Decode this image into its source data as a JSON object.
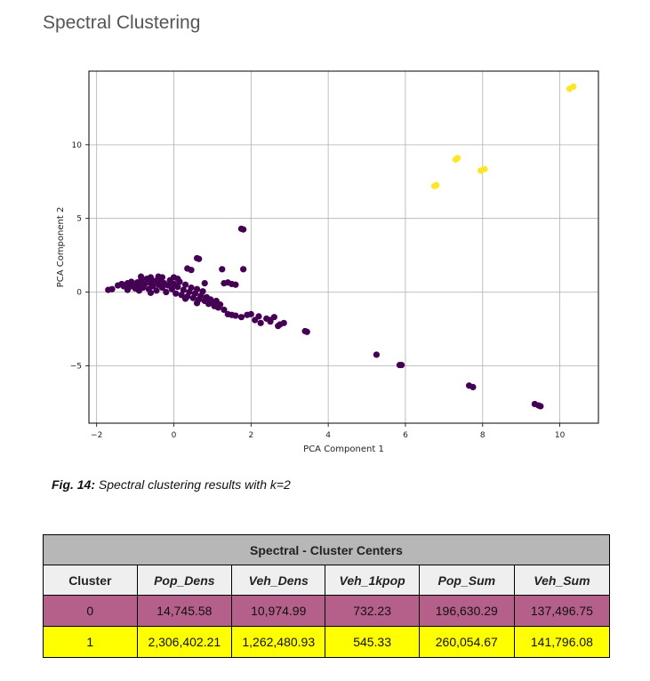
{
  "heading": "Spectral Clustering",
  "caption": {
    "label": "Fig. 14:",
    "text": " Spectral clustering results with k=2"
  },
  "chart_data": {
    "type": "scatter",
    "xlabel": "PCA Component 1",
    "ylabel": "PCA Component 2",
    "xlim": [
      -2.2,
      11.0
    ],
    "ylim": [
      -8.9,
      15.0
    ],
    "xticks": [
      -2,
      0,
      2,
      4,
      6,
      8,
      10
    ],
    "yticks": [
      -5,
      0,
      5,
      10
    ],
    "xtick_labels": [
      "−2",
      "0",
      "2",
      "4",
      "6",
      "8",
      "10"
    ],
    "ytick_labels": [
      "−5",
      "0",
      "5",
      "10"
    ],
    "grid": true,
    "colors": {
      "0": "#440154",
      "1": "#fde725"
    },
    "series": [
      {
        "cluster": 0,
        "points": [
          [
            -1.7,
            0.15
          ],
          [
            -1.6,
            0.2
          ],
          [
            -1.45,
            0.45
          ],
          [
            -1.35,
            0.55
          ],
          [
            -1.3,
            0.4
          ],
          [
            -1.2,
            0.6
          ],
          [
            -1.15,
            0.35
          ],
          [
            -1.1,
            0.7
          ],
          [
            -1.05,
            0.5
          ],
          [
            -1.0,
            0.25
          ],
          [
            -0.95,
            0.65
          ],
          [
            -0.9,
            0.45
          ],
          [
            -0.85,
            0.8
          ],
          [
            -0.8,
            0.3
          ],
          [
            -0.75,
            0.55
          ],
          [
            -0.7,
            0.9
          ],
          [
            -0.65,
            0.2
          ],
          [
            -0.6,
            0.6
          ],
          [
            -0.55,
            0.4
          ],
          [
            -0.5,
            0.75
          ],
          [
            -0.45,
            0.1
          ],
          [
            -0.4,
            0.5
          ],
          [
            -0.35,
            0.85
          ],
          [
            -0.3,
            0.3
          ],
          [
            -0.25,
            0.6
          ],
          [
            -0.2,
            0.0
          ],
          [
            -0.15,
            0.45
          ],
          [
            -0.1,
            0.8
          ],
          [
            -0.05,
            0.2
          ],
          [
            0.0,
            0.55
          ],
          [
            0.05,
            -0.1
          ],
          [
            0.1,
            0.35
          ],
          [
            0.15,
            0.7
          ],
          [
            0.2,
            -0.2
          ],
          [
            0.25,
            0.15
          ],
          [
            0.3,
            0.5
          ],
          [
            0.35,
            -0.3
          ],
          [
            0.4,
            0.0
          ],
          [
            0.45,
            0.3
          ],
          [
            0.5,
            -0.4
          ],
          [
            0.55,
            -0.1
          ],
          [
            0.6,
            0.2
          ],
          [
            0.65,
            -0.5
          ],
          [
            0.7,
            -0.25
          ],
          [
            0.75,
            0.05
          ],
          [
            0.8,
            -0.6
          ],
          [
            0.85,
            -0.35
          ],
          [
            0.9,
            -0.8
          ],
          [
            0.95,
            -0.5
          ],
          [
            1.0,
            -0.7
          ],
          [
            1.05,
            -0.95
          ],
          [
            1.1,
            -0.6
          ],
          [
            1.15,
            -1.05
          ],
          [
            1.2,
            -0.85
          ],
          [
            1.3,
            -1.2
          ],
          [
            -1.2,
            0.15
          ],
          [
            -0.9,
            0.1
          ],
          [
            -0.6,
            -0.05
          ],
          [
            -0.3,
            1.0
          ],
          [
            0.0,
            1.0
          ],
          [
            0.3,
            -0.45
          ],
          [
            0.6,
            -0.75
          ],
          [
            -0.85,
            1.05
          ],
          [
            -0.6,
            1.0
          ],
          [
            -0.4,
            1.05
          ],
          [
            0.1,
            0.9
          ],
          [
            0.35,
            1.6
          ],
          [
            0.45,
            1.5
          ],
          [
            0.6,
            2.3
          ],
          [
            0.65,
            2.25
          ],
          [
            0.8,
            0.6
          ],
          [
            1.25,
            1.55
          ],
          [
            1.3,
            0.6
          ],
          [
            1.4,
            0.65
          ],
          [
            1.5,
            0.55
          ],
          [
            1.6,
            0.5
          ],
          [
            1.75,
            4.3
          ],
          [
            1.8,
            4.25
          ],
          [
            1.8,
            1.55
          ],
          [
            1.4,
            -1.5
          ],
          [
            1.5,
            -1.55
          ],
          [
            1.6,
            -1.6
          ],
          [
            1.75,
            -1.7
          ],
          [
            1.9,
            -1.55
          ],
          [
            2.0,
            -1.5
          ],
          [
            2.1,
            -1.9
          ],
          [
            2.2,
            -1.65
          ],
          [
            2.25,
            -2.1
          ],
          [
            2.4,
            -1.8
          ],
          [
            2.5,
            -1.9
          ],
          [
            2.5,
            -2.0
          ],
          [
            2.6,
            -1.7
          ],
          [
            2.7,
            -2.3
          ],
          [
            2.75,
            -2.2
          ],
          [
            2.85,
            -2.1
          ],
          [
            3.4,
            -2.65
          ],
          [
            3.45,
            -2.7
          ],
          [
            5.25,
            -4.25
          ],
          [
            5.85,
            -4.95
          ],
          [
            5.9,
            -4.95
          ],
          [
            7.65,
            -6.35
          ],
          [
            7.75,
            -6.45
          ],
          [
            9.35,
            -7.6
          ],
          [
            9.45,
            -7.7
          ],
          [
            9.5,
            -7.75
          ]
        ]
      },
      {
        "cluster": 1,
        "points": [
          [
            6.75,
            7.2
          ],
          [
            6.8,
            7.25
          ],
          [
            7.3,
            9.0
          ],
          [
            7.35,
            9.1
          ],
          [
            7.95,
            8.25
          ],
          [
            8.05,
            8.35
          ],
          [
            10.25,
            13.8
          ],
          [
            10.35,
            13.95
          ]
        ]
      }
    ]
  },
  "table": {
    "title": "Spectral - Cluster Centers",
    "headers": [
      "Cluster",
      "Pop_Dens",
      "Veh_Dens",
      "Veh_1kpop",
      "Pop_Sum",
      "Veh_Sum"
    ],
    "rows": [
      [
        "0",
        "14,745.58",
        "10,974.99",
        "732.23",
        "196,630.29",
        "137,496.75"
      ],
      [
        "1",
        "2,306,402.21",
        "1,262,480.93",
        "545.33",
        "260,054.67",
        "141,796.08"
      ]
    ],
    "row_colors": [
      "#b5608b",
      "#ffff00"
    ]
  }
}
